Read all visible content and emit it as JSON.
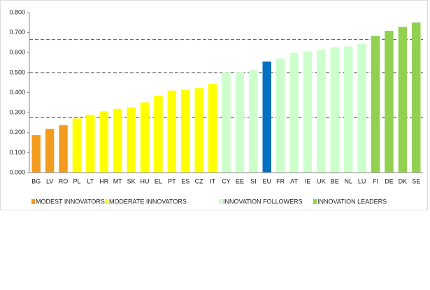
{
  "chart_data": {
    "type": "bar",
    "categories": [
      "BG",
      "LV",
      "RO",
      "PL",
      "LT",
      "HR",
      "MT",
      "SK",
      "HU",
      "EL",
      "PT",
      "ES",
      "CZ",
      "IT",
      "CY",
      "EE",
      "SI",
      "EU",
      "FR",
      "AT",
      "IE",
      "UK",
      "BE",
      "NL",
      "LU",
      "FI",
      "DE",
      "DK",
      "SE"
    ],
    "values": [
      0.188,
      0.218,
      0.237,
      0.271,
      0.289,
      0.306,
      0.319,
      0.326,
      0.351,
      0.384,
      0.41,
      0.414,
      0.422,
      0.443,
      0.501,
      0.502,
      0.513,
      0.555,
      0.571,
      0.599,
      0.606,
      0.613,
      0.627,
      0.631,
      0.643,
      0.684,
      0.709,
      0.728,
      0.75
    ],
    "colors": [
      "#f39c1f",
      "#f39c1f",
      "#f39c1f",
      "#ffff00",
      "#ffff00",
      "#ffff00",
      "#ffff00",
      "#ffff00",
      "#ffff00",
      "#ffff00",
      "#ffff00",
      "#ffff00",
      "#ffff00",
      "#ffff00",
      "#ccffcc",
      "#ccffcc",
      "#ccffcc",
      "#0070c0",
      "#ccffcc",
      "#ccffcc",
      "#ccffcc",
      "#ccffcc",
      "#ccffcc",
      "#ccffcc",
      "#ccffcc",
      "#92d050",
      "#92d050",
      "#92d050",
      "#92d050"
    ],
    "legend": [
      {
        "name": "MODEST INNOVATORS",
        "color": "#f39c1f"
      },
      {
        "name": "MODERATE INNOVATORS",
        "color": "#ffff00"
      },
      {
        "name": "INNOVATION FOLLOWERS",
        "color": "#ccffcc"
      },
      {
        "name": "INNOVATION LEADERS",
        "color": "#92d050"
      }
    ],
    "reference_lines": [
      0.275,
      0.5,
      0.665
    ],
    "ylim": [
      0,
      0.8
    ],
    "yticks": [
      {
        "value": 0,
        "label": "0.000"
      },
      {
        "value": 0.1,
        "label": "0.100"
      },
      {
        "value": 0.2,
        "label": "0.200"
      },
      {
        "value": 0.3,
        "label": "0.300"
      },
      {
        "value": 0.4,
        "label": "0.400"
      },
      {
        "value": 0.5,
        "label": "0.500"
      },
      {
        "value": 0.6,
        "label": "0.600"
      },
      {
        "value": 0.7,
        "label": "0.700"
      },
      {
        "value": 0.8,
        "label": "0.800"
      }
    ]
  }
}
